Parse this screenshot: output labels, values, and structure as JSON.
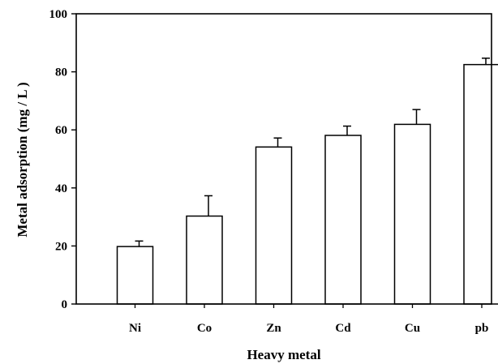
{
  "chart_data": {
    "type": "bar",
    "title": "",
    "xlabel": "Heavy metal",
    "ylabel": "Metal adsorption (mg / L )",
    "categories": [
      "Ni",
      "Co",
      "Zn",
      "Cd",
      "Cu",
      "pb"
    ],
    "series": [
      {
        "values": [
          19.8,
          30.3,
          54.1,
          58.1,
          61.9,
          82.5
        ],
        "error": [
          1.9,
          7.0,
          3.1,
          3.2,
          5.1,
          2.2
        ]
      }
    ],
    "ylim": [
      0,
      100
    ],
    "yticks": [
      0,
      20,
      40,
      60,
      80,
      100
    ],
    "grid": false,
    "legend": "none",
    "colors": {
      "bar_fill": "#ffffff",
      "bar_stroke": "#000000",
      "axis": "#000000"
    }
  }
}
